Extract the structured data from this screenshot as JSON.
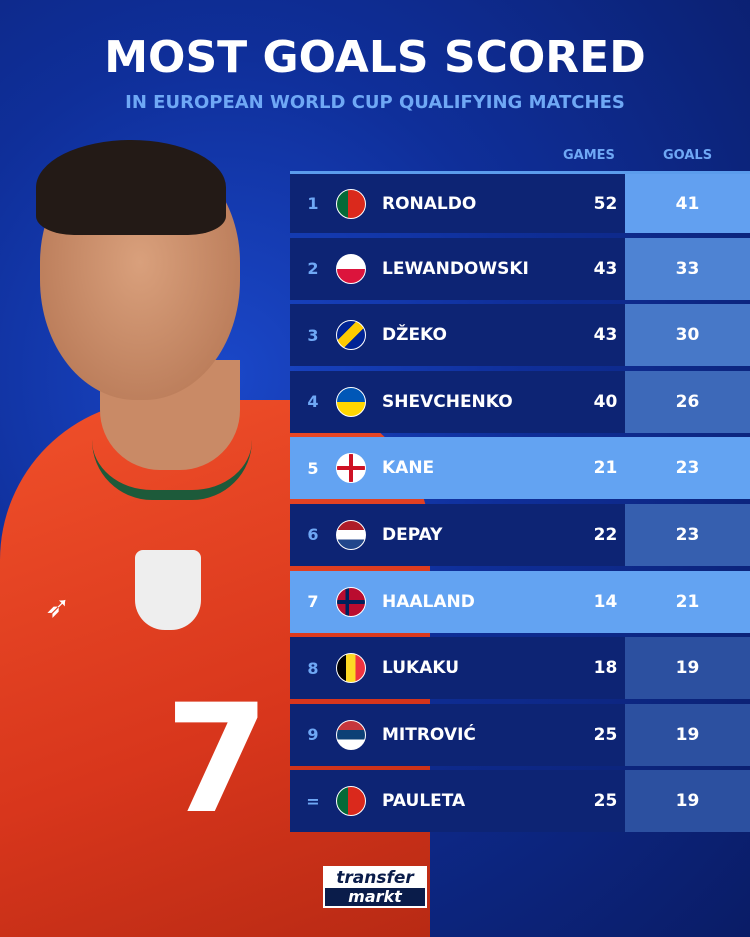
{
  "title": "MOST GOALS SCORED",
  "subtitle": "IN EUROPEAN WORLD CUP QUALIFYING MATCHES",
  "brand": "transfermarkt",
  "colors": {
    "dark_row": "#0d2474",
    "highlight_row": "#63a3f2",
    "accent": "#6fa8f5"
  },
  "chart_data": {
    "type": "table",
    "columns": [
      "GAMES",
      "GOALS"
    ],
    "rows": [
      {
        "rank": "1",
        "name": "RONALDO",
        "flag": "portugal",
        "games": 52,
        "goals": 41,
        "highlight": false
      },
      {
        "rank": "2",
        "name": "LEWANDOWSKI",
        "flag": "poland",
        "games": 43,
        "goals": 33,
        "highlight": false
      },
      {
        "rank": "3",
        "name": "DŽEKO",
        "flag": "bosnia",
        "games": 43,
        "goals": 30,
        "highlight": false
      },
      {
        "rank": "4",
        "name": "SHEVCHENKO",
        "flag": "ukraine",
        "games": 40,
        "goals": 26,
        "highlight": false
      },
      {
        "rank": "5",
        "name": "KANE",
        "flag": "england",
        "games": 21,
        "goals": 23,
        "highlight": true
      },
      {
        "rank": "6",
        "name": "DEPAY",
        "flag": "netherlands",
        "games": 22,
        "goals": 23,
        "highlight": false
      },
      {
        "rank": "7",
        "name": "HAALAND",
        "flag": "norway",
        "games": 14,
        "goals": 21,
        "highlight": true
      },
      {
        "rank": "8",
        "name": "LUKAKU",
        "flag": "belgium",
        "games": 18,
        "goals": 19,
        "highlight": false
      },
      {
        "rank": "9",
        "name": "MITROVIĆ",
        "flag": "serbia",
        "games": 25,
        "goals": 19,
        "highlight": false
      },
      {
        "rank": "=",
        "name": "PAULETA",
        "flag": "portugal",
        "games": 25,
        "goals": 19,
        "highlight": false
      }
    ]
  }
}
